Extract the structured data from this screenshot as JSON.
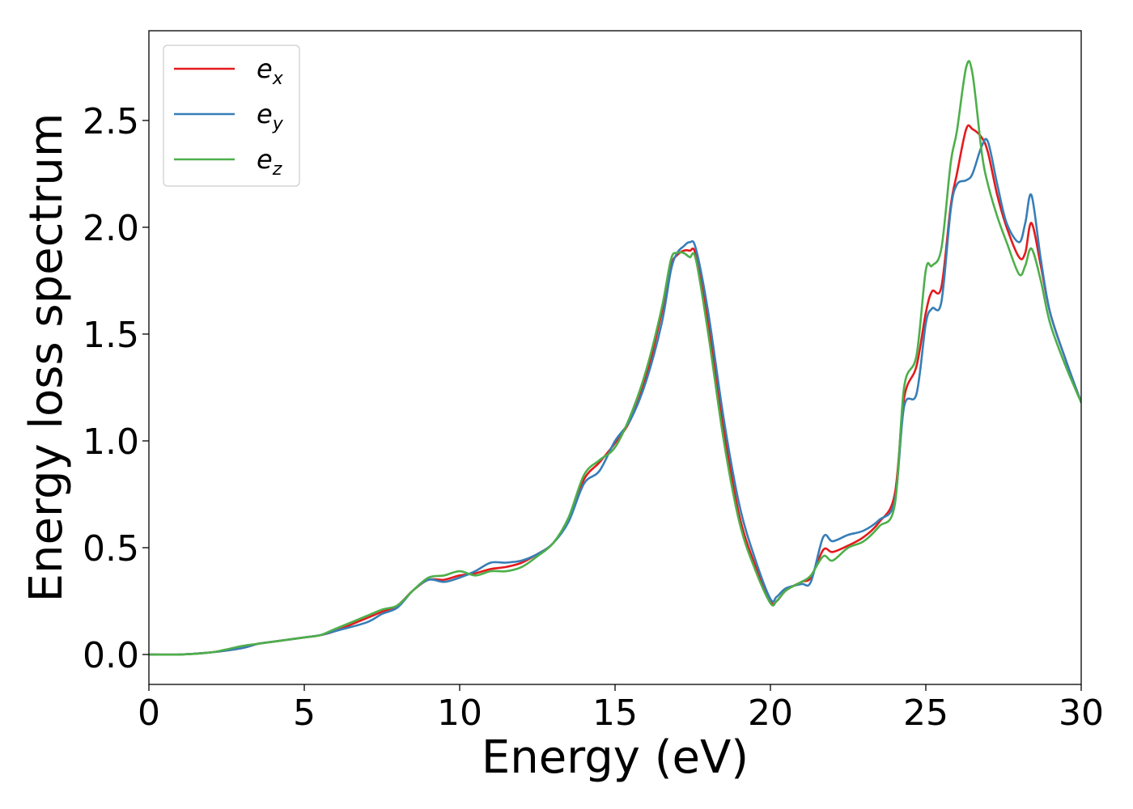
{
  "chart_data": {
    "type": "line",
    "title": "",
    "xlabel": "Energy (eV)",
    "ylabel": "Energy loss spectrum",
    "xlim": [
      0,
      30
    ],
    "ylim": [
      -0.14,
      2.92
    ],
    "xticks": [
      0,
      5,
      10,
      15,
      20,
      25,
      30
    ],
    "yticks": [
      0.0,
      0.5,
      1.0,
      1.5,
      2.0,
      2.5
    ],
    "xtick_labels": [
      "0",
      "5",
      "10",
      "15",
      "20",
      "25",
      "30"
    ],
    "ytick_labels": [
      "0.0",
      "0.5",
      "1.0",
      "1.5",
      "2.0",
      "2.5"
    ],
    "grid": false,
    "legend_position": "top-left",
    "series": [
      {
        "name": "e_x",
        "label_base": "e",
        "label_sub": "x",
        "color": "#e41a1c",
        "x": [
          0,
          1,
          2,
          3,
          3.5,
          4,
          5,
          5.5,
          6,
          7,
          7.5,
          8,
          8.5,
          9,
          9.5,
          10,
          10.5,
          11,
          11.5,
          12,
          12.5,
          13,
          13.5,
          14,
          14.5,
          15,
          15.5,
          16,
          16.5,
          16.8,
          17,
          17.2,
          17.4,
          17.6,
          18,
          18.5,
          19,
          19.5,
          20,
          20.2,
          20.5,
          21,
          21.3,
          21.7,
          22,
          22.5,
          23,
          23.5,
          24,
          24.3,
          24.7,
          25,
          25.2,
          25.5,
          25.8,
          26,
          26.3,
          26.5,
          26.8,
          27,
          27.3,
          27.6,
          28,
          28.2,
          28.4,
          28.7,
          29,
          29.5,
          30
        ],
        "y": [
          0.0,
          0.0,
          0.01,
          0.03,
          0.05,
          0.06,
          0.08,
          0.09,
          0.11,
          0.17,
          0.2,
          0.23,
          0.3,
          0.35,
          0.35,
          0.37,
          0.38,
          0.4,
          0.41,
          0.43,
          0.47,
          0.52,
          0.63,
          0.82,
          0.9,
          0.99,
          1.1,
          1.3,
          1.6,
          1.82,
          1.87,
          1.89,
          1.89,
          1.87,
          1.55,
          1.05,
          0.65,
          0.42,
          0.25,
          0.25,
          0.3,
          0.34,
          0.36,
          0.49,
          0.48,
          0.51,
          0.55,
          0.62,
          0.75,
          1.2,
          1.35,
          1.6,
          1.7,
          1.72,
          2.1,
          2.25,
          2.46,
          2.46,
          2.42,
          2.35,
          2.15,
          2.0,
          1.86,
          1.88,
          2.02,
          1.82,
          1.6,
          1.38,
          1.18
        ]
      },
      {
        "name": "e_y",
        "label_base": "e",
        "label_sub": "y",
        "color": "#377eb8",
        "x": [
          0,
          1,
          2,
          3,
          3.5,
          4,
          5,
          5.5,
          6,
          7,
          7.5,
          8,
          8.5,
          9,
          9.5,
          10,
          10.5,
          11,
          11.5,
          12,
          12.5,
          13,
          13.5,
          14,
          14.5,
          15,
          15.5,
          16,
          16.5,
          16.8,
          17,
          17.2,
          17.4,
          17.6,
          18,
          18.5,
          19,
          19.5,
          20,
          20.2,
          20.5,
          21,
          21.3,
          21.7,
          22,
          22.5,
          23,
          23.5,
          24,
          24.3,
          24.7,
          25,
          25.2,
          25.5,
          25.8,
          26,
          26.3,
          26.5,
          26.8,
          27,
          27.3,
          27.6,
          28,
          28.2,
          28.4,
          28.7,
          29,
          29.5,
          30
        ],
        "y": [
          0.0,
          0.0,
          0.01,
          0.03,
          0.05,
          0.06,
          0.08,
          0.09,
          0.11,
          0.15,
          0.19,
          0.22,
          0.3,
          0.35,
          0.34,
          0.36,
          0.39,
          0.43,
          0.43,
          0.44,
          0.47,
          0.52,
          0.62,
          0.8,
          0.86,
          1.0,
          1.1,
          1.28,
          1.55,
          1.8,
          1.88,
          1.91,
          1.93,
          1.9,
          1.6,
          1.1,
          0.7,
          0.45,
          0.26,
          0.27,
          0.31,
          0.33,
          0.34,
          0.55,
          0.53,
          0.56,
          0.58,
          0.63,
          0.72,
          1.16,
          1.22,
          1.55,
          1.62,
          1.65,
          2.08,
          2.2,
          2.22,
          2.25,
          2.38,
          2.4,
          2.2,
          2.02,
          1.93,
          2.02,
          2.15,
          1.85,
          1.6,
          1.38,
          1.18
        ]
      },
      {
        "name": "e_z",
        "label_base": "e",
        "label_sub": "z",
        "color": "#4daf4a",
        "x": [
          0,
          1,
          2,
          3,
          3.5,
          4,
          5,
          5.5,
          6,
          7,
          7.5,
          8,
          8.5,
          9,
          9.5,
          10,
          10.5,
          11,
          11.5,
          12,
          12.5,
          13,
          13.5,
          14,
          14.5,
          15,
          15.5,
          16,
          16.5,
          16.8,
          17,
          17.2,
          17.4,
          17.6,
          18,
          18.5,
          19,
          19.5,
          20,
          20.2,
          20.5,
          21,
          21.3,
          21.7,
          22,
          22.5,
          23,
          23.5,
          24,
          24.3,
          24.7,
          25,
          25.2,
          25.5,
          25.8,
          26,
          26.3,
          26.5,
          26.8,
          27,
          27.3,
          27.6,
          28,
          28.2,
          28.4,
          28.7,
          29,
          29.5,
          30
        ],
        "y": [
          0.0,
          0.0,
          0.01,
          0.04,
          0.05,
          0.06,
          0.08,
          0.09,
          0.12,
          0.18,
          0.21,
          0.23,
          0.3,
          0.36,
          0.37,
          0.39,
          0.37,
          0.39,
          0.39,
          0.41,
          0.46,
          0.52,
          0.64,
          0.84,
          0.91,
          0.97,
          1.12,
          1.33,
          1.62,
          1.85,
          1.88,
          1.88,
          1.86,
          1.85,
          1.5,
          1.0,
          0.62,
          0.4,
          0.24,
          0.25,
          0.3,
          0.34,
          0.37,
          0.46,
          0.44,
          0.5,
          0.53,
          0.6,
          0.7,
          1.25,
          1.4,
          1.8,
          1.82,
          1.9,
          2.3,
          2.45,
          2.75,
          2.72,
          2.35,
          2.2,
          2.05,
          1.93,
          1.78,
          1.82,
          1.9,
          1.75,
          1.55,
          1.35,
          1.18
        ]
      }
    ]
  }
}
